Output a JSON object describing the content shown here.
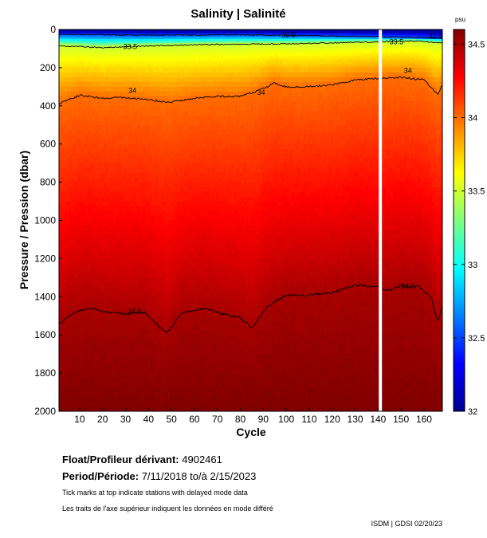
{
  "chart_data": {
    "type": "heatmap",
    "title": "Salinity | Salinité",
    "xlabel": "Cycle",
    "ylabel": "Pressure / Pression (dbar)",
    "xlim": [
      1,
      168
    ],
    "ylim": [
      0,
      2000
    ],
    "y_reversed": true,
    "x_ticks": [
      10,
      20,
      30,
      40,
      50,
      60,
      70,
      80,
      90,
      100,
      110,
      120,
      130,
      140,
      150,
      160
    ],
    "y_ticks": [
      0,
      200,
      400,
      600,
      800,
      1000,
      1200,
      1400,
      1600,
      1800,
      2000
    ],
    "colorbar": {
      "unit": "psu",
      "range": [
        32,
        34.6
      ],
      "ticks": [
        32,
        32.5,
        33,
        33.5,
        34,
        34.5
      ],
      "tick_labels": [
        "32",
        "32.5",
        "33",
        "33.5",
        "34",
        "34.5"
      ],
      "colormap": "jet"
    },
    "gap_cycle": 141,
    "contours": [
      {
        "label": "32.5",
        "depth": [
          [
            1,
            25
          ],
          [
            40,
            30
          ],
          [
            80,
            28
          ],
          [
            110,
            32
          ],
          [
            140,
            38
          ],
          [
            168,
            45
          ]
        ]
      },
      {
        "label": "33.5",
        "depth": [
          [
            1,
            85
          ],
          [
            20,
            95
          ],
          [
            30,
            90
          ],
          [
            60,
            80
          ],
          [
            100,
            75
          ],
          [
            140,
            65
          ],
          [
            155,
            60
          ],
          [
            168,
            70
          ]
        ]
      },
      {
        "label": "34",
        "depth": [
          [
            1,
            390
          ],
          [
            10,
            345
          ],
          [
            20,
            360
          ],
          [
            30,
            355
          ],
          [
            40,
            370
          ],
          [
            50,
            380
          ],
          [
            60,
            360
          ],
          [
            70,
            350
          ],
          [
            80,
            350
          ],
          [
            88,
            320
          ],
          [
            95,
            280
          ],
          [
            100,
            300
          ],
          [
            110,
            300
          ],
          [
            120,
            290
          ],
          [
            130,
            265
          ],
          [
            140,
            255
          ],
          [
            150,
            250
          ],
          [
            160,
            265
          ],
          [
            166,
            340
          ],
          [
            168,
            290
          ]
        ]
      },
      {
        "label": "34.5",
        "depth": [
          [
            1,
            1540
          ],
          [
            8,
            1480
          ],
          [
            15,
            1460
          ],
          [
            20,
            1480
          ],
          [
            30,
            1490
          ],
          [
            38,
            1480
          ],
          [
            45,
            1560
          ],
          [
            48,
            1590
          ],
          [
            55,
            1480
          ],
          [
            65,
            1460
          ],
          [
            72,
            1490
          ],
          [
            80,
            1510
          ],
          [
            85,
            1560
          ],
          [
            92,
            1450
          ],
          [
            100,
            1390
          ],
          [
            110,
            1390
          ],
          [
            120,
            1380
          ],
          [
            130,
            1340
          ],
          [
            140,
            1350
          ],
          [
            145,
            1370
          ],
          [
            150,
            1340
          ],
          [
            158,
            1350
          ],
          [
            163,
            1400
          ],
          [
            166,
            1530
          ],
          [
            168,
            1450
          ]
        ]
      }
    ],
    "contour_label_positions": [
      {
        "label": "32.5",
        "cycle": 101,
        "depth": 30
      },
      {
        "label": "33.5",
        "cycle": 32,
        "depth": 90
      },
      {
        "label": "33.5",
        "cycle": 148,
        "depth": 65
      },
      {
        "label": "32.5",
        "cycle": 165,
        "depth": 35
      },
      {
        "label": "34",
        "cycle": 33,
        "depth": 320
      },
      {
        "label": "34",
        "cycle": 153,
        "depth": 215
      },
      {
        "label": "34",
        "cycle": 89,
        "depth": 330
      },
      {
        "label": "34.5",
        "cycle": 34,
        "depth": 1475
      },
      {
        "label": "34.5",
        "cycle": 153,
        "depth": 1345
      }
    ]
  },
  "info": {
    "float_label": "Float/Profileur dérivant:",
    "float_value": "4902461",
    "period_label": "Period/Période:",
    "period_value": "7/11/2018  to/à  2/15/2023",
    "note_en": "Tick marks at top indicate stations with delayed mode data",
    "note_fr": "Les traits de l'axe supérieur indiquent les données en mode différé",
    "credit": "ISDM | GDSI  02/20/23"
  }
}
